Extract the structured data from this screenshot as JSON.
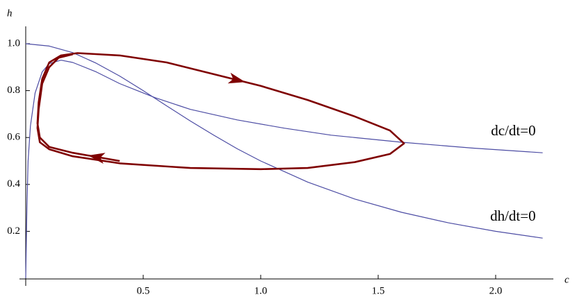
{
  "chart_data": {
    "type": "line",
    "x_label": "c",
    "y_label": "h",
    "xlim": [
      0,
      2.2
    ],
    "ylim": [
      0,
      1.05
    ],
    "xticks": [
      0.5,
      {
        "value": 1.0,
        "label": "1.0"
      },
      1.5,
      {
        "value": 2.0,
        "label": "2.0"
      }
    ],
    "yticks": [
      0.2,
      0.4,
      0.6,
      0.8,
      {
        "value": 1.0,
        "label": "1.0"
      }
    ],
    "series": [
      {
        "name": "dc/dt=0",
        "color": "#4b4ba3",
        "x": [
          0,
          0.005,
          0.01,
          0.02,
          0.04,
          0.07,
          0.1,
          0.15,
          0.2,
          0.3,
          0.4,
          0.55,
          0.7,
          0.9,
          1.1,
          1.3,
          1.6,
          1.9,
          2.2
        ],
        "values": [
          0,
          0.3,
          0.5,
          0.65,
          0.79,
          0.88,
          0.915,
          0.93,
          0.92,
          0.88,
          0.83,
          0.77,
          0.72,
          0.675,
          0.64,
          0.61,
          0.58,
          0.555,
          0.535
        ]
      },
      {
        "name": "dh/dt=0",
        "color": "#4b4ba3",
        "x": [
          0,
          0.1,
          0.2,
          0.3,
          0.4,
          0.5,
          0.6,
          0.7,
          0.8,
          0.9,
          1.0,
          1.2,
          1.4,
          1.6,
          1.8,
          2.0,
          2.2
        ],
        "values": [
          1,
          0.99,
          0.962,
          0.917,
          0.862,
          0.8,
          0.735,
          0.671,
          0.61,
          0.552,
          0.5,
          0.41,
          0.338,
          0.281,
          0.236,
          0.2,
          0.171
        ]
      },
      {
        "color": "#7f0000",
        "x": [
          0.4,
          0.2,
          0.1,
          0.06,
          0.05,
          0.055,
          0.07,
          0.1,
          0.15,
          0.22,
          0.4,
          0.6,
          0.8,
          1.0,
          1.2,
          1.4,
          1.55,
          1.61,
          1.55,
          1.4,
          1.2,
          1.0,
          0.7,
          0.4,
          0.2,
          0.1,
          0.06,
          0.05,
          0.055,
          0.07,
          0.1,
          0.14,
          0.2
        ],
        "values": [
          0.5,
          0.535,
          0.56,
          0.6,
          0.66,
          0.75,
          0.85,
          0.92,
          0.95,
          0.96,
          0.95,
          0.92,
          0.87,
          0.82,
          0.76,
          0.69,
          0.63,
          0.575,
          0.53,
          0.495,
          0.47,
          0.465,
          0.47,
          0.49,
          0.52,
          0.55,
          0.58,
          0.64,
          0.72,
          0.83,
          0.9,
          0.94,
          0.955
        ]
      }
    ]
  }
}
